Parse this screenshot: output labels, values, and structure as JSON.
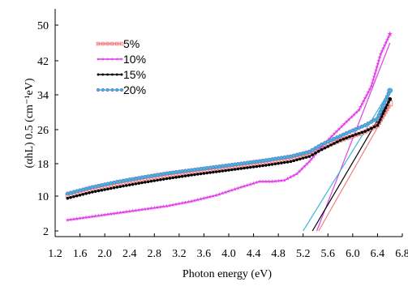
{
  "chart_data": {
    "type": "scatter",
    "xlabel": "Photon energy (eV)",
    "ylabel": "(αhL) 0.5 (cm⁻¹eV)",
    "xlim": [
      1.2,
      6.8
    ],
    "ylim": [
      2,
      54
    ],
    "xticks": [
      "1.2",
      "1.6",
      "2.0",
      "2.4",
      "2.8",
      "3.2",
      "3.6",
      "4.0",
      "4.4",
      "4.8",
      "5.2",
      "5.6",
      "6.0",
      "6.4",
      "6.8"
    ],
    "yticks": [
      "2",
      "10",
      "18",
      "26",
      "34",
      "42",
      "50"
    ],
    "legend_position": "top-left",
    "grid": false,
    "series": [
      {
        "name": "5%",
        "color": "#f08080",
        "marker": "square",
        "x": [
          1.4,
          1.8,
          2.2,
          2.6,
          3.0,
          3.4,
          3.8,
          4.2,
          4.6,
          5.0,
          5.3,
          5.5,
          5.8,
          6.0,
          6.2,
          6.4,
          6.6
        ],
        "y": [
          10.2,
          11.8,
          13.1,
          14.2,
          15.2,
          16.0,
          16.8,
          17.6,
          18.4,
          19.3,
          20.3,
          21.8,
          23.5,
          24.5,
          25.5,
          27.0,
          32.0
        ],
        "fit": {
          "x": [
            5.45,
            6.6
          ],
          "y": [
            2,
            31.5
          ]
        }
      },
      {
        "name": "10%",
        "color": "#e040e8",
        "marker": "star",
        "x": [
          1.4,
          1.8,
          2.2,
          2.6,
          3.0,
          3.4,
          3.8,
          4.2,
          4.5,
          4.7,
          4.9,
          5.1,
          5.3,
          5.5,
          5.7,
          5.9,
          6.1,
          6.3,
          6.45,
          6.6
        ],
        "y": [
          4.5,
          5.3,
          6.1,
          6.9,
          7.7,
          8.8,
          10.2,
          12.2,
          13.6,
          13.6,
          13.9,
          15.5,
          18.5,
          22.0,
          25.0,
          27.8,
          30.5,
          36.0,
          43.5,
          48.0
        ],
        "fit": {
          "x": [
            5.42,
            6.6
          ],
          "y": [
            2,
            46
          ]
        }
      },
      {
        "name": "15%",
        "color": "#000000",
        "marker": "dot",
        "x": [
          1.4,
          1.8,
          2.2,
          2.6,
          3.0,
          3.4,
          3.8,
          4.2,
          4.6,
          5.0,
          5.3,
          5.5,
          5.8,
          6.0,
          6.2,
          6.4,
          6.6
        ],
        "y": [
          9.5,
          11.0,
          12.2,
          13.3,
          14.3,
          15.2,
          16.0,
          16.8,
          17.6,
          18.5,
          19.7,
          21.3,
          23.5,
          24.6,
          25.6,
          27.0,
          33.0
        ],
        "fit": {
          "x": [
            5.35,
            6.6
          ],
          "y": [
            2,
            33.0
          ]
        }
      },
      {
        "name": "20%",
        "color": "#3ab8d8",
        "marker": "circle",
        "x": [
          1.4,
          1.8,
          2.2,
          2.6,
          3.0,
          3.4,
          3.8,
          4.2,
          4.6,
          5.0,
          5.3,
          5.5,
          5.8,
          6.0,
          6.2,
          6.4,
          6.6
        ],
        "y": [
          10.6,
          12.2,
          13.5,
          14.6,
          15.6,
          16.4,
          17.2,
          18.0,
          18.8,
          19.7,
          20.8,
          22.5,
          24.5,
          25.8,
          27.0,
          28.6,
          35.0
        ],
        "fit": {
          "x": [
            5.2,
            6.6
          ],
          "y": [
            2,
            35.0
          ]
        }
      }
    ]
  }
}
